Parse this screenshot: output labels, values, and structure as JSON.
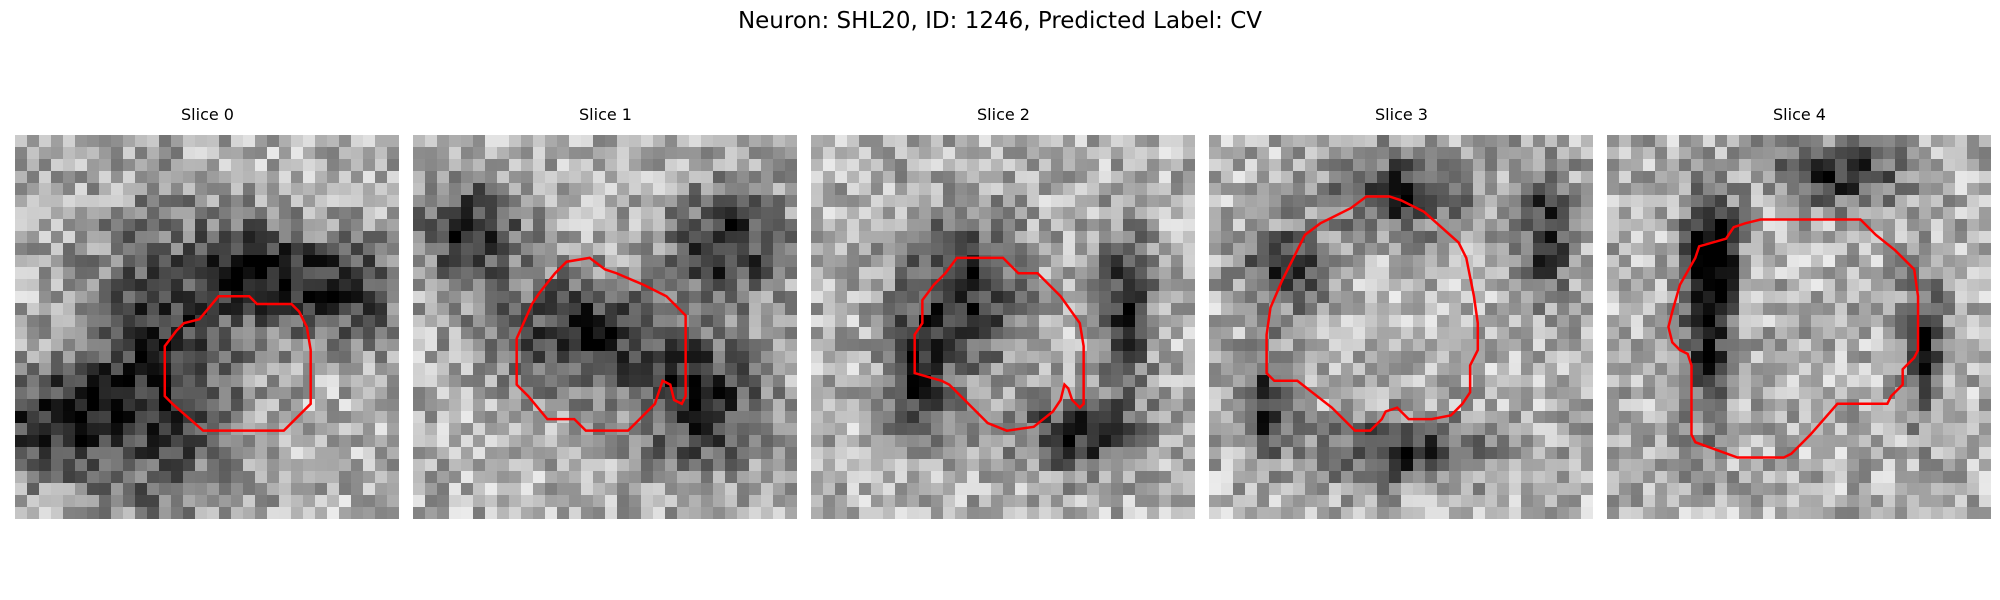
{
  "figure": {
    "title": "Neuron: SHL20, ID: 1246, Predicted Label: CV"
  },
  "colors": {
    "contour": "#ff0000",
    "background": "#ffffff"
  },
  "panels": [
    {
      "title": "Slice 0",
      "blobs": [
        [
          0.38,
          0.6,
          0.3,
          0.55
        ],
        [
          0.62,
          0.35,
          0.18,
          0.18
        ],
        [
          0.85,
          0.4,
          0.25,
          0.2
        ],
        [
          0.1,
          0.75,
          0.25,
          0.2
        ]
      ],
      "contour": [
        [
          0.48,
          0.48
        ],
        [
          0.53,
          0.42
        ],
        [
          0.61,
          0.42
        ],
        [
          0.63,
          0.44
        ],
        [
          0.72,
          0.44
        ],
        [
          0.74,
          0.46
        ],
        [
          0.76,
          0.5
        ],
        [
          0.77,
          0.56
        ],
        [
          0.77,
          0.7
        ],
        [
          0.7,
          0.77
        ],
        [
          0.62,
          0.77
        ],
        [
          0.49,
          0.77
        ],
        [
          0.41,
          0.7
        ],
        [
          0.39,
          0.68
        ],
        [
          0.39,
          0.55
        ],
        [
          0.42,
          0.51
        ],
        [
          0.44,
          0.49
        ]
      ]
    },
    {
      "title": "Slice 1",
      "blobs": [
        [
          0.45,
          0.52,
          0.35,
          0.22
        ],
        [
          0.82,
          0.28,
          0.22,
          0.22
        ],
        [
          0.75,
          0.7,
          0.25,
          0.25
        ],
        [
          0.15,
          0.25,
          0.2,
          0.2
        ]
      ],
      "contour": [
        [
          0.27,
          0.53
        ],
        [
          0.31,
          0.44
        ],
        [
          0.33,
          0.41
        ],
        [
          0.37,
          0.36
        ],
        [
          0.4,
          0.33
        ],
        [
          0.46,
          0.32
        ],
        [
          0.5,
          0.35
        ],
        [
          0.53,
          0.36
        ],
        [
          0.6,
          0.39
        ],
        [
          0.66,
          0.42
        ],
        [
          0.71,
          0.47
        ],
        [
          0.71,
          0.68
        ],
        [
          0.7,
          0.7
        ],
        [
          0.68,
          0.69
        ],
        [
          0.67,
          0.65
        ],
        [
          0.65,
          0.64
        ],
        [
          0.64,
          0.67
        ],
        [
          0.63,
          0.7
        ],
        [
          0.58,
          0.75
        ],
        [
          0.56,
          0.77
        ],
        [
          0.45,
          0.77
        ],
        [
          0.42,
          0.74
        ],
        [
          0.35,
          0.74
        ],
        [
          0.3,
          0.68
        ],
        [
          0.27,
          0.65
        ]
      ]
    },
    {
      "title": "Slice 2",
      "blobs": [
        [
          0.4,
          0.4,
          0.22,
          0.3
        ],
        [
          0.7,
          0.78,
          0.25,
          0.14
        ],
        [
          0.28,
          0.64,
          0.12,
          0.25
        ],
        [
          0.82,
          0.45,
          0.1,
          0.3
        ]
      ],
      "contour": [
        [
          0.27,
          0.62
        ],
        [
          0.27,
          0.52
        ],
        [
          0.29,
          0.49
        ],
        [
          0.29,
          0.43
        ],
        [
          0.32,
          0.39
        ],
        [
          0.35,
          0.36
        ],
        [
          0.38,
          0.32
        ],
        [
          0.5,
          0.32
        ],
        [
          0.54,
          0.36
        ],
        [
          0.59,
          0.36
        ],
        [
          0.65,
          0.42
        ],
        [
          0.7,
          0.49
        ],
        [
          0.71,
          0.55
        ],
        [
          0.71,
          0.7
        ],
        [
          0.7,
          0.71
        ],
        [
          0.68,
          0.69
        ],
        [
          0.67,
          0.66
        ],
        [
          0.66,
          0.65
        ],
        [
          0.65,
          0.69
        ],
        [
          0.63,
          0.72
        ],
        [
          0.58,
          0.76
        ],
        [
          0.51,
          0.77
        ],
        [
          0.46,
          0.75
        ],
        [
          0.45,
          0.74
        ],
        [
          0.36,
          0.65
        ],
        [
          0.34,
          0.64
        ]
      ]
    },
    {
      "title": "Slice 3",
      "blobs": [
        [
          0.5,
          0.15,
          0.25,
          0.15
        ],
        [
          0.2,
          0.35,
          0.15,
          0.15
        ],
        [
          0.5,
          0.82,
          0.3,
          0.12
        ],
        [
          0.88,
          0.25,
          0.1,
          0.25
        ],
        [
          0.15,
          0.7,
          0.1,
          0.2
        ]
      ],
      "contour": [
        [
          0.16,
          0.45
        ],
        [
          0.19,
          0.38
        ],
        [
          0.23,
          0.3
        ],
        [
          0.25,
          0.26
        ],
        [
          0.29,
          0.23
        ],
        [
          0.31,
          0.22
        ],
        [
          0.37,
          0.19
        ],
        [
          0.41,
          0.16
        ],
        [
          0.47,
          0.16
        ],
        [
          0.5,
          0.17
        ],
        [
          0.56,
          0.2
        ],
        [
          0.65,
          0.28
        ],
        [
          0.67,
          0.32
        ],
        [
          0.68,
          0.37
        ],
        [
          0.69,
          0.42
        ],
        [
          0.7,
          0.49
        ],
        [
          0.7,
          0.56
        ],
        [
          0.68,
          0.6
        ],
        [
          0.68,
          0.67
        ],
        [
          0.66,
          0.7
        ],
        [
          0.63,
          0.73
        ],
        [
          0.58,
          0.74
        ],
        [
          0.52,
          0.74
        ],
        [
          0.49,
          0.71
        ],
        [
          0.46,
          0.72
        ],
        [
          0.45,
          0.74
        ],
        [
          0.42,
          0.77
        ],
        [
          0.38,
          0.77
        ],
        [
          0.35,
          0.74
        ],
        [
          0.32,
          0.71
        ],
        [
          0.23,
          0.64
        ],
        [
          0.17,
          0.64
        ],
        [
          0.15,
          0.62
        ],
        [
          0.15,
          0.52
        ]
      ]
    },
    {
      "title": "Slice 4",
      "blobs": [
        [
          0.26,
          0.5,
          0.1,
          0.4
        ],
        [
          0.28,
          0.3,
          0.1,
          0.2
        ],
        [
          0.82,
          0.55,
          0.08,
          0.28
        ],
        [
          0.6,
          0.1,
          0.25,
          0.12
        ]
      ],
      "contour": [
        [
          0.16,
          0.5
        ],
        [
          0.17,
          0.46
        ],
        [
          0.19,
          0.39
        ],
        [
          0.23,
          0.32
        ],
        [
          0.24,
          0.29
        ],
        [
          0.31,
          0.27
        ],
        [
          0.33,
          0.24
        ],
        [
          0.36,
          0.23
        ],
        [
          0.4,
          0.22
        ],
        [
          0.5,
          0.22
        ],
        [
          0.66,
          0.22
        ],
        [
          0.7,
          0.26
        ],
        [
          0.75,
          0.3
        ],
        [
          0.8,
          0.35
        ],
        [
          0.81,
          0.42
        ],
        [
          0.81,
          0.56
        ],
        [
          0.8,
          0.58
        ],
        [
          0.79,
          0.59
        ],
        [
          0.77,
          0.61
        ],
        [
          0.77,
          0.65
        ],
        [
          0.74,
          0.68
        ],
        [
          0.73,
          0.7
        ],
        [
          0.6,
          0.7
        ],
        [
          0.53,
          0.78
        ],
        [
          0.51,
          0.8
        ],
        [
          0.48,
          0.83
        ],
        [
          0.46,
          0.84
        ],
        [
          0.34,
          0.84
        ],
        [
          0.23,
          0.8
        ],
        [
          0.22,
          0.78
        ],
        [
          0.22,
          0.6
        ],
        [
          0.21,
          0.57
        ],
        [
          0.19,
          0.56
        ],
        [
          0.17,
          0.54
        ]
      ]
    }
  ]
}
